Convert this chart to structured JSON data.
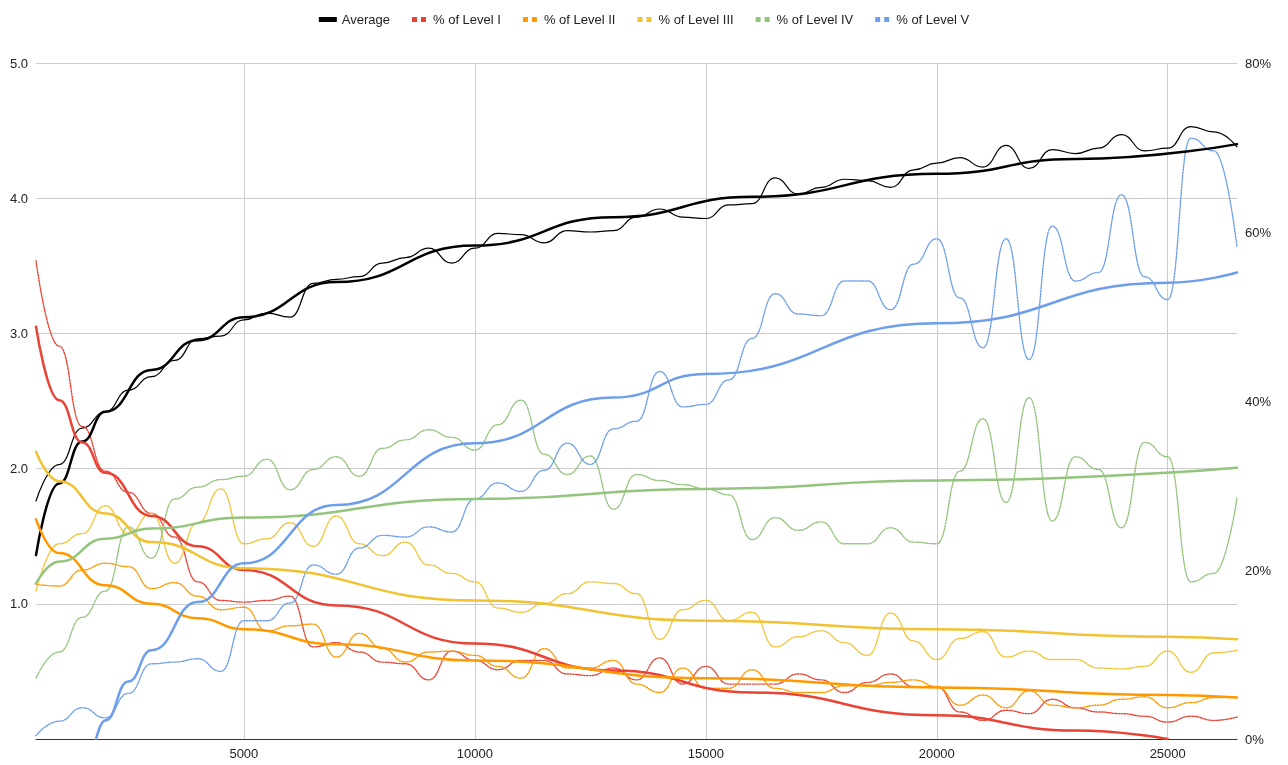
{
  "chart_data": {
    "type": "line",
    "x": [
      500,
      1000,
      1500,
      2000,
      2500,
      3000,
      3500,
      4000,
      4500,
      5000,
      5500,
      6000,
      6500,
      7000,
      7500,
      8000,
      8500,
      9000,
      9500,
      10000,
      10500,
      11000,
      11500,
      12000,
      12500,
      13000,
      13500,
      14000,
      14500,
      15000,
      15500,
      16000,
      16500,
      17000,
      17500,
      18000,
      18500,
      19000,
      19500,
      20000,
      20500,
      21000,
      21500,
      22000,
      22500,
      23000,
      23500,
      24000,
      24500,
      25000,
      25500,
      26000,
      26500
    ],
    "xlim": [
      500,
      26500
    ],
    "xticks": [
      5000,
      10000,
      15000,
      20000,
      25000
    ],
    "ylim": [
      0,
      5
    ],
    "yticks": [
      {
        "value": 0,
        "label": null
      },
      {
        "value": 1,
        "label": "1.0"
      },
      {
        "value": 2,
        "label": "2.0"
      },
      {
        "value": 3,
        "label": "3.0"
      },
      {
        "value": 4,
        "label": "4.0"
      },
      {
        "value": 5,
        "label": "5.0"
      }
    ],
    "y2lim": [
      0,
      80
    ],
    "y2ticks": [
      {
        "value": 0,
        "label": "0%"
      },
      {
        "value": 20,
        "label": "20%"
      },
      {
        "value": 40,
        "label": "40%"
      },
      {
        "value": 60,
        "label": "60%"
      },
      {
        "value": 80,
        "label": "80%"
      }
    ],
    "grid": true,
    "legend": "top",
    "marker": "none",
    "series": [
      {
        "name": "Average",
        "color": "#000000",
        "line_style": "solid",
        "values": [
          1.76,
          2.03,
          2.3,
          2.42,
          2.58,
          2.68,
          2.8,
          2.96,
          2.98,
          3.1,
          3.15,
          3.12,
          3.37,
          3.4,
          3.42,
          3.52,
          3.56,
          3.63,
          3.52,
          3.63,
          3.74,
          3.73,
          3.67,
          3.76,
          3.75,
          3.76,
          3.86,
          3.92,
          3.86,
          3.85,
          3.95,
          3.96,
          4.15,
          4.03,
          4.08,
          4.14,
          4.13,
          4.08,
          4.21,
          4.26,
          4.3,
          4.23,
          4.39,
          4.22,
          4.36,
          4.33,
          4.37,
          4.47,
          4.35,
          4.37,
          4.53,
          4.49,
          4.38
        ]
      },
      {
        "name": "% of Level I",
        "color": "#ea4335",
        "axis": "y2",
        "line_style": "dotted",
        "values": [
          56.6,
          46.5,
          37.0,
          31.7,
          29.2,
          26.7,
          23.9,
          18.6,
          16.4,
          16.2,
          16.4,
          16.9,
          10.9,
          11.4,
          10.3,
          9.1,
          8.9,
          7.0,
          10.4,
          9.3,
          8.2,
          9.3,
          9.3,
          7.7,
          7.5,
          8.4,
          7.0,
          9.6,
          6.5,
          8.6,
          6.5,
          6.5,
          6.5,
          7.7,
          7.0,
          5.5,
          6.7,
          7.7,
          6.2,
          6.2,
          3.2,
          2.2,
          3.4,
          3.0,
          4.7,
          3.7,
          3.2,
          3.0,
          2.7,
          2.0,
          2.7,
          2.2,
          2.6
        ]
      },
      {
        "name": "% of Level II",
        "color": "#ff9900",
        "axis": "y2",
        "line_style": "dotted",
        "values": [
          18.3,
          18.1,
          20.0,
          20.8,
          20.4,
          17.8,
          18.5,
          16.9,
          15.3,
          15.6,
          12.8,
          13.4,
          13.6,
          9.7,
          12.5,
          10.7,
          9.1,
          10.3,
          10.4,
          9.9,
          8.6,
          7.2,
          10.7,
          8.4,
          8.4,
          9.3,
          6.5,
          5.5,
          8.4,
          6.0,
          6.0,
          8.2,
          6.0,
          5.5,
          5.5,
          6.3,
          6.3,
          6.7,
          7.0,
          6.2,
          4.0,
          5.2,
          3.7,
          5.7,
          4.0,
          3.7,
          4.0,
          4.7,
          5.0,
          3.7,
          4.3,
          4.9,
          5.0
        ]
      },
      {
        "name": "% of Level III",
        "color": "#f1c232",
        "axis": "y2",
        "line_style": "dotted",
        "values": [
          17.5,
          23.1,
          24.3,
          27.6,
          24.3,
          26.7,
          20.8,
          25.6,
          29.6,
          23.1,
          23.7,
          25.6,
          22.8,
          26.4,
          23.1,
          21.7,
          23.3,
          20.6,
          19.6,
          18.6,
          15.5,
          15.0,
          16.0,
          17.2,
          18.6,
          18.4,
          17.2,
          11.8,
          15.3,
          16.4,
          14.0,
          15.0,
          10.9,
          12.1,
          12.8,
          11.4,
          9.9,
          14.9,
          11.6,
          9.4,
          11.9,
          12.7,
          9.7,
          10.4,
          9.4,
          9.4,
          8.4,
          8.3,
          8.6,
          10.4,
          7.9,
          10.2,
          10.5
        ]
      },
      {
        "name": "% of Level IV",
        "color": "#93c47d",
        "axis": "y2",
        "line_style": "dotted",
        "values": [
          7.2,
          10.3,
          14.4,
          17.5,
          25.1,
          21.4,
          28.4,
          29.8,
          30.7,
          31.1,
          33.1,
          29.5,
          31.9,
          33.4,
          31.1,
          34.4,
          35.4,
          36.6,
          35.7,
          34.2,
          37.2,
          40.1,
          33.7,
          31.3,
          33.5,
          27.2,
          31.3,
          30.6,
          30.1,
          29.6,
          28.9,
          23.6,
          26.2,
          24.7,
          25.7,
          23.1,
          23.1,
          25.0,
          23.3,
          23.1,
          31.7,
          37.9,
          28.0,
          40.4,
          25.8,
          33.4,
          31.9,
          25.0,
          35.1,
          33.4,
          18.6,
          19.6,
          28.5
        ]
      },
      {
        "name": "% of Level V",
        "color": "#6d9eeb",
        "axis": "y2",
        "line_style": "dotted",
        "values": [
          0.4,
          2.1,
          3.7,
          2.5,
          5.4,
          8.9,
          9.1,
          9.5,
          8.0,
          14.0,
          14.0,
          16.1,
          20.6,
          19.5,
          22.6,
          24.1,
          23.9,
          25.1,
          24.5,
          28.4,
          30.3,
          29.3,
          31.8,
          35.0,
          32.5,
          36.7,
          37.6,
          43.5,
          39.3,
          39.6,
          42.5,
          47.4,
          52.7,
          50.3,
          50.1,
          54.2,
          54.2,
          50.8,
          56.2,
          59.2,
          52.2,
          46.3,
          59.2,
          44.9,
          60.7,
          54.2,
          55.2,
          64.4,
          54.7,
          52.0,
          71.1,
          69.6,
          58.2
        ]
      },
      {
        "color": "#000000",
        "line_style": "solid",
        "x": [
          500,
          1000,
          1500,
          2000,
          3000,
          4000,
          5000,
          7000,
          10000,
          13000,
          16000,
          20000,
          23000,
          26500
        ],
        "values": [
          1.36,
          1.89,
          2.2,
          2.42,
          2.73,
          2.95,
          3.12,
          3.38,
          3.65,
          3.86,
          4.01,
          4.18,
          4.29,
          4.4
        ]
      },
      {
        "color": "#ea4335",
        "axis": "y2",
        "line_style": "solid",
        "x": [
          500,
          1000,
          1500,
          2000,
          3000,
          4000,
          5000,
          7000,
          10000,
          13000,
          16000,
          20000,
          23000,
          25000
        ],
        "values": [
          48.8,
          40.1,
          35.1,
          31.5,
          26.4,
          22.8,
          20.0,
          15.8,
          11.3,
          8.1,
          5.5,
          2.8,
          1.0,
          0
        ]
      },
      {
        "color": "#ff9900",
        "axis": "y2",
        "line_style": "solid",
        "x": [
          500,
          1000,
          2000,
          3000,
          4000,
          5000,
          7000,
          10000,
          15000,
          20000,
          25000,
          26500
        ],
        "values": [
          26.0,
          22.0,
          18.2,
          16.0,
          14.3,
          13.0,
          11.2,
          9.3,
          7.2,
          6.1,
          5.2,
          4.9
        ]
      },
      {
        "color": "#f1c232",
        "axis": "y2",
        "line_style": "solid",
        "x": [
          500,
          1000,
          2000,
          3000,
          5000,
          10000,
          15000,
          20000,
          25000,
          26500
        ],
        "values": [
          34.0,
          30.5,
          26.7,
          23.3,
          20.2,
          16.4,
          14.0,
          13.0,
          12.1,
          11.8
        ]
      },
      {
        "color": "#93c47d",
        "axis": "y2",
        "line_style": "solid",
        "x": [
          500,
          1000,
          2000,
          3000,
          5000,
          10000,
          15000,
          20000,
          26500
        ],
        "values": [
          18.4,
          21.0,
          23.7,
          24.9,
          26.2,
          28.4,
          29.6,
          30.6,
          32.1
        ]
      },
      {
        "color": "#6d9eeb",
        "axis": "y2",
        "line_style": "solid",
        "x": [
          1800,
          2000,
          2500,
          3000,
          4000,
          5000,
          7000,
          10000,
          13000,
          15000,
          20000,
          25000,
          26500
        ],
        "values": [
          0,
          2.2,
          6.8,
          10.5,
          16.2,
          20.8,
          27.7,
          35.0,
          40.4,
          43.2,
          49.2,
          54.0,
          55.2
        ]
      }
    ]
  }
}
